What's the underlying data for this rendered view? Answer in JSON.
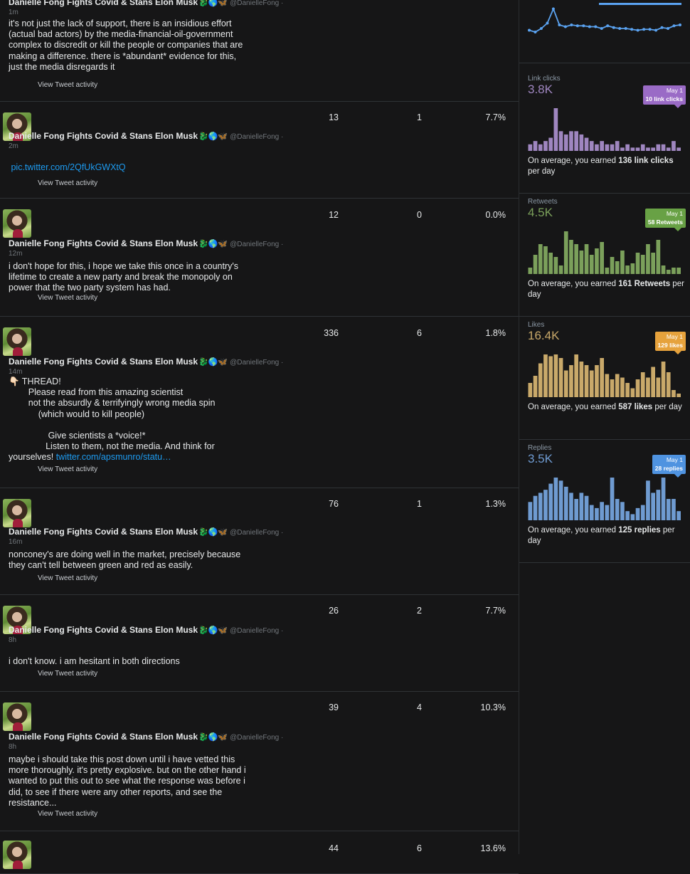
{
  "tweets": [
    {
      "author": "Danielle Fong Fights Covid & Stans Elon Musk",
      "emojis": "🐉🌎🦋",
      "handle": "@DanielleFong ·",
      "time": "1m",
      "text": "it's not just the lack of support, there is an insidious effort (actual bad actors) by the media-financial-oil-government complex to discredit or kill the people or companies that are making a difference. there is *abundant* evidence for this, just the media disregards it",
      "link": "",
      "activity": "View Tweet activity"
    },
    {
      "author": "Danielle Fong Fights Covid & Stans Elon Musk",
      "emojis": "🐉🌎🦋",
      "handle": "@DanielleFong ·",
      "time": "2m",
      "text": "",
      "link": " pic.twitter.com/2QfUkGWXtQ",
      "activity": "View Tweet activity",
      "impressions": "13",
      "engagements": "1",
      "rate": "7.7%"
    },
    {
      "author": "Danielle Fong Fights Covid & Stans Elon Musk",
      "emojis": "🐉🌎🦋",
      "handle": "@DanielleFong ·",
      "time": "12m",
      "text": "i don't hope for this, i hope we take this once in a country's lifetime to create a new party and break the monopoly on power that the two party system has had.",
      "link": "",
      "activity": "View Tweet activity",
      "impressions": "12",
      "engagements": "0",
      "rate": "0.0%"
    },
    {
      "author": "Danielle Fong Fights Covid & Stans Elon Musk",
      "emojis": "🐉🌎🦋",
      "handle": "@DanielleFong ·",
      "time": "14m",
      "text": "👇🏻 THREAD!\n        Please read from this amazing scientist\n        not the absurdly & terrifyingly wrong media spin\n            (which would to kill people)\n\n                Give scientists a *voice!*\n               Listen to them, not the media. And think for yourselves! ",
      "link": "twitter.com/apsmunro/statu…",
      "activity": "View Tweet activity",
      "impressions": "336",
      "engagements": "6",
      "rate": "1.8%"
    },
    {
      "author": "Danielle Fong Fights Covid & Stans Elon Musk",
      "emojis": "🐉🌎🦋",
      "handle": "@DanielleFong ·",
      "time": "16m",
      "text": "nonconey's are doing well in the market, precisely because they can't tell between green and red as easily.",
      "link": "",
      "activity": "View Tweet activity",
      "impressions": "76",
      "engagements": "1",
      "rate": "1.3%"
    },
    {
      "author": "Danielle Fong Fights Covid & Stans Elon Musk",
      "emojis": "🐉🌎🦋",
      "handle": "@DanielleFong ·",
      "time": "8h",
      "text": "i don't know. i am hesitant in both directions",
      "link": "",
      "activity": "View Tweet activity",
      "impressions": "26",
      "engagements": "2",
      "rate": "7.7%"
    },
    {
      "author": "Danielle Fong Fights Covid & Stans Elon Musk",
      "emojis": "🐉🌎🦋",
      "handle": "@DanielleFong ·",
      "time": "8h",
      "text": "maybe i should take this post down until i have vetted this more thoroughly. it's pretty explosive. but on the other hand i wanted to put this out to see what the response was before i did, to see if there were any other reports, and see the resistance...",
      "link": "",
      "activity": "View Tweet activity",
      "impressions": "39",
      "engagements": "4",
      "rate": "10.3%"
    },
    {
      "impressions": "44",
      "engagements": "6",
      "rate": "13.6%"
    }
  ],
  "sidebar": {
    "cards": [
      {
        "key": "link_clicks",
        "label": "Link clicks",
        "total": "3.8K",
        "color": "#9f86c0",
        "tip_date": "May 1",
        "tip_text": "10 link clicks",
        "avg_prefix": "On average, you earned ",
        "avg_value": "136 link clicks",
        "avg_suffix": " per day",
        "values": [
          2,
          3,
          2,
          3,
          4,
          13,
          6,
          5,
          6,
          6,
          5,
          4,
          3,
          2,
          3,
          2,
          2,
          3,
          1,
          2,
          1,
          1,
          2,
          1,
          1,
          2,
          2,
          1,
          3,
          1
        ]
      },
      {
        "key": "retweets",
        "label": "Retweets",
        "total": "4.5K",
        "color": "#7ba05b",
        "tip_date": "May 1",
        "tip_text": "58 Retweets",
        "avg_prefix": "On average, you earned ",
        "avg_value": "161 Retweets",
        "avg_suffix": " per day",
        "values": [
          3,
          9,
          14,
          13,
          10,
          8,
          4,
          20,
          16,
          14,
          11,
          14,
          9,
          12,
          15,
          3,
          8,
          6,
          11,
          4,
          5,
          10,
          9,
          14,
          10,
          16,
          4,
          2,
          3,
          3
        ]
      },
      {
        "key": "likes",
        "label": "Likes",
        "total": "16.4K",
        "color": "#c9a96a",
        "tip_date": "May 1",
        "tip_text": "129 likes",
        "avg_prefix": "On average, you earned ",
        "avg_value": "587 likes",
        "avg_suffix": " per day",
        "values": [
          8,
          12,
          19,
          24,
          23,
          24,
          22,
          15,
          18,
          24,
          20,
          18,
          15,
          18,
          22,
          13,
          10,
          13,
          11,
          8,
          5,
          10,
          14,
          11,
          17,
          11,
          20,
          14,
          4,
          2
        ]
      },
      {
        "key": "replies",
        "label": "Replies",
        "total": "3.5K",
        "color": "#6f9bd1",
        "tip_date": "May 1",
        "tip_text": "28 replies",
        "avg_prefix": "On average, you earned ",
        "avg_value": "125 replies",
        "avg_suffix": " per day",
        "values": [
          6,
          8,
          9,
          10,
          12,
          14,
          13,
          11,
          9,
          7,
          9,
          8,
          5,
          4,
          6,
          5,
          14,
          7,
          6,
          3,
          2,
          4,
          5,
          13,
          9,
          10,
          14,
          7,
          7,
          3
        ]
      }
    ],
    "top_line": [
      14,
      12,
      16,
      22,
      38,
      20,
      18,
      20,
      19,
      19,
      18,
      18,
      16,
      19,
      17,
      16,
      16,
      15,
      14,
      15,
      15,
      14,
      17,
      16,
      19,
      20
    ]
  },
  "colors": {
    "background": "#161617",
    "link": "#1d9bf0",
    "tip_link_clicks": "#9a6bc6",
    "tip_retweets": "#68a145",
    "tip_likes": "#e6a23c",
    "tip_replies": "#4f93e0",
    "line": "#5aa2f0"
  }
}
